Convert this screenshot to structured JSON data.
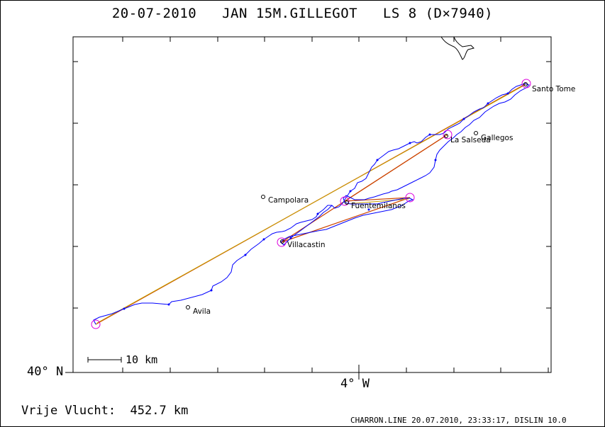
{
  "header": {
    "title": "20-07-2010   JAN 15M.GILLEGOT   LS 8 (D×7940)"
  },
  "axes": {
    "lat_label": "40° N",
    "lon_label": "4° W"
  },
  "scale_bar": {
    "label": "10 km"
  },
  "places": [
    {
      "name": "Santo Tome"
    },
    {
      "name": "La Salseda"
    },
    {
      "name": "Gallegos"
    },
    {
      "name": "Campolara"
    },
    {
      "name": "Fuentemilanos"
    },
    {
      "name": "Villacastin"
    },
    {
      "name": "Avila"
    }
  ],
  "footer": {
    "distance": "Vrije Vlucht:  452.7 km",
    "credit": "CHARRON.LINE 20.07.2010, 23:33:17, DISLIN 10.0"
  },
  "colors": {
    "track": "#0000ff",
    "task_line": "#cc4400",
    "task_line2": "#c8a000",
    "turnpoint": "#dd00dd",
    "axis": "#000000"
  }
}
